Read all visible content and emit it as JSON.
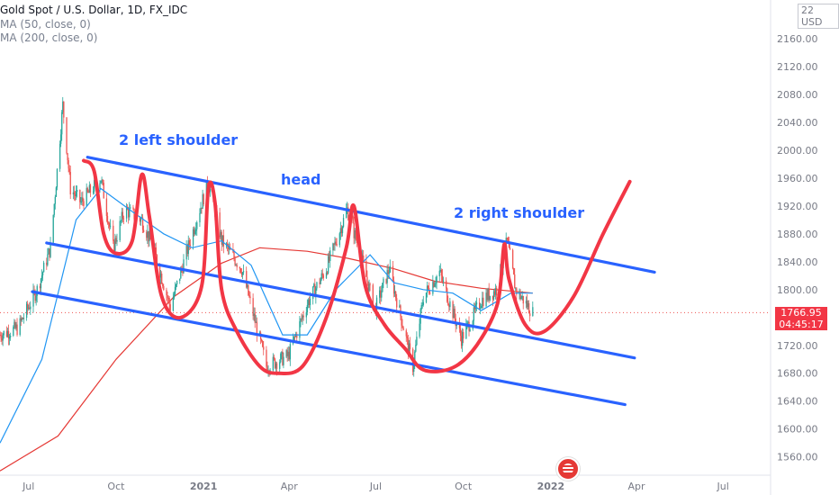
{
  "legend": {
    "symbol": "Gold Spot / U.S. Dollar, 1D, FX_IDC",
    "ma50": "MA (50, close, 0)",
    "ma200": "MA (200, close, 0)"
  },
  "currency_label": "USD",
  "currency_prefix": "22",
  "price_tag": {
    "price": "1766.95",
    "countdown": "04:45:17"
  },
  "annotations": {
    "left_shoulder": "2 left shoulder",
    "head": "head",
    "right_shoulder": "2 right shoulder"
  },
  "colors": {
    "channel": "#2962ff",
    "drawing": "#f23645",
    "ma50": "#2196f3",
    "ma200": "#e53935",
    "up": "#26a69a",
    "down": "#ef5350"
  },
  "chart_data": {
    "type": "candlestick",
    "title": "Gold Spot / U.S. Dollar, 1D, FX_IDC",
    "y_ticks": [
      "2160.00",
      "2120.00",
      "2080.00",
      "2040.00",
      "2000.00",
      "1960.00",
      "1920.00",
      "1880.00",
      "1840.00",
      "1800.00",
      "1720.00",
      "1680.00",
      "1640.00",
      "1600.00",
      "1560.00"
    ],
    "x_ticks": [
      "Jul",
      "Oct",
      "2021",
      "Apr",
      "Jul",
      "Oct",
      "2022",
      "Apr",
      "Jul"
    ],
    "ylim": [
      1530,
      2220
    ],
    "last_price": 1766.95,
    "close_path": [
      {
        "x": "2020-06-01",
        "y": 1735
      },
      {
        "x": "2020-06-20",
        "y": 1745
      },
      {
        "x": "2020-07-10",
        "y": 1800
      },
      {
        "x": "2020-07-24",
        "y": 1860
      },
      {
        "x": "2020-08-06",
        "y": 2065
      },
      {
        "x": "2020-08-14",
        "y": 1945
      },
      {
        "x": "2020-08-25",
        "y": 1925
      },
      {
        "x": "2020-09-15",
        "y": 1960
      },
      {
        "x": "2020-09-28",
        "y": 1860
      },
      {
        "x": "2020-10-10",
        "y": 1915
      },
      {
        "x": "2020-10-28",
        "y": 1900
      },
      {
        "x": "2020-11-09",
        "y": 1860
      },
      {
        "x": "2020-11-27",
        "y": 1775
      },
      {
        "x": "2020-12-20",
        "y": 1880
      },
      {
        "x": "2021-01-06",
        "y": 1955
      },
      {
        "x": "2021-01-20",
        "y": 1870
      },
      {
        "x": "2021-02-10",
        "y": 1830
      },
      {
        "x": "2021-03-08",
        "y": 1690
      },
      {
        "x": "2021-03-31",
        "y": 1705
      },
      {
        "x": "2021-04-20",
        "y": 1780
      },
      {
        "x": "2021-05-10",
        "y": 1830
      },
      {
        "x": "2021-06-01",
        "y": 1915
      },
      {
        "x": "2021-06-15",
        "y": 1850
      },
      {
        "x": "2021-06-30",
        "y": 1770
      },
      {
        "x": "2021-07-15",
        "y": 1830
      },
      {
        "x": "2021-08-09",
        "y": 1690
      },
      {
        "x": "2021-08-20",
        "y": 1790
      },
      {
        "x": "2021-09-06",
        "y": 1825
      },
      {
        "x": "2021-09-29",
        "y": 1730
      },
      {
        "x": "2021-10-20",
        "y": 1785
      },
      {
        "x": "2021-11-05",
        "y": 1800
      },
      {
        "x": "2021-11-16",
        "y": 1870
      },
      {
        "x": "2021-11-25",
        "y": 1800
      },
      {
        "x": "2021-12-13",
        "y": 1767
      }
    ],
    "series": [
      {
        "name": "MA (50, close, 0)",
        "values": [
          {
            "x": "2020-06-01",
            "y": 1580
          },
          {
            "x": "2020-07-15",
            "y": 1700
          },
          {
            "x": "2020-08-20",
            "y": 1900
          },
          {
            "x": "2020-09-15",
            "y": 1945
          },
          {
            "x": "2020-10-20",
            "y": 1910
          },
          {
            "x": "2020-11-20",
            "y": 1880
          },
          {
            "x": "2020-12-20",
            "y": 1860
          },
          {
            "x": "2021-01-20",
            "y": 1870
          },
          {
            "x": "2021-02-20",
            "y": 1835
          },
          {
            "x": "2021-03-25",
            "y": 1735
          },
          {
            "x": "2021-04-20",
            "y": 1735
          },
          {
            "x": "2021-05-20",
            "y": 1800
          },
          {
            "x": "2021-06-25",
            "y": 1850
          },
          {
            "x": "2021-07-20",
            "y": 1810
          },
          {
            "x": "2021-08-20",
            "y": 1800
          },
          {
            "x": "2021-09-20",
            "y": 1795
          },
          {
            "x": "2021-10-20",
            "y": 1770
          },
          {
            "x": "2021-11-20",
            "y": 1795
          },
          {
            "x": "2021-12-13",
            "y": 1795
          }
        ]
      },
      {
        "name": "MA (200, close, 0)",
        "values": [
          {
            "x": "2020-06-01",
            "y": 1540
          },
          {
            "x": "2020-08-01",
            "y": 1590
          },
          {
            "x": "2020-10-01",
            "y": 1700
          },
          {
            "x": "2020-12-01",
            "y": 1790
          },
          {
            "x": "2021-01-20",
            "y": 1838
          },
          {
            "x": "2021-03-01",
            "y": 1860
          },
          {
            "x": "2021-04-20",
            "y": 1855
          },
          {
            "x": "2021-06-01",
            "y": 1845
          },
          {
            "x": "2021-07-20",
            "y": 1830
          },
          {
            "x": "2021-09-01",
            "y": 1812
          },
          {
            "x": "2021-10-20",
            "y": 1802
          },
          {
            "x": "2021-12-13",
            "y": 1795
          }
        ]
      }
    ],
    "trendlines": [
      {
        "start": {
          "x": "2020-09-01",
          "y": 1990
        },
        "end": {
          "x": "2022-04-20",
          "y": 1825
        }
      },
      {
        "start": {
          "x": "2020-07-20",
          "y": 1867
        },
        "end": {
          "x": "2022-03-30",
          "y": 1702
        }
      },
      {
        "start": {
          "x": "2020-07-05",
          "y": 1797
        },
        "end": {
          "x": "2022-03-20",
          "y": 1635
        }
      }
    ],
    "drawing": [
      {
        "x": "2020-08-28",
        "y": 1985
      },
      {
        "x": "2020-09-08",
        "y": 1970
      },
      {
        "x": "2020-09-18",
        "y": 1880
      },
      {
        "x": "2020-10-01",
        "y": 1852
      },
      {
        "x": "2020-10-18",
        "y": 1870
      },
      {
        "x": "2020-10-28",
        "y": 1965
      },
      {
        "x": "2020-11-05",
        "y": 1905
      },
      {
        "x": "2020-11-18",
        "y": 1790
      },
      {
        "x": "2020-12-08",
        "y": 1760
      },
      {
        "x": "2020-12-30",
        "y": 1805
      },
      {
        "x": "2021-01-06",
        "y": 1945
      },
      {
        "x": "2021-01-13",
        "y": 1925
      },
      {
        "x": "2021-01-20",
        "y": 1800
      },
      {
        "x": "2021-02-05",
        "y": 1740
      },
      {
        "x": "2021-03-01",
        "y": 1690
      },
      {
        "x": "2021-03-20",
        "y": 1680
      },
      {
        "x": "2021-04-15",
        "y": 1690
      },
      {
        "x": "2021-05-10",
        "y": 1760
      },
      {
        "x": "2021-05-31",
        "y": 1860
      },
      {
        "x": "2021-06-08",
        "y": 1920
      },
      {
        "x": "2021-06-20",
        "y": 1805
      },
      {
        "x": "2021-07-10",
        "y": 1750
      },
      {
        "x": "2021-08-01",
        "y": 1715
      },
      {
        "x": "2021-08-20",
        "y": 1685
      },
      {
        "x": "2021-09-20",
        "y": 1688
      },
      {
        "x": "2021-10-15",
        "y": 1720
      },
      {
        "x": "2021-11-06",
        "y": 1780
      },
      {
        "x": "2021-11-13",
        "y": 1865
      },
      {
        "x": "2021-11-18",
        "y": 1815
      },
      {
        "x": "2021-12-05",
        "y": 1750
      },
      {
        "x": "2021-12-25",
        "y": 1740
      },
      {
        "x": "2022-01-25",
        "y": 1790
      },
      {
        "x": "2022-02-25",
        "y": 1880
      },
      {
        "x": "2022-03-25",
        "y": 1955
      }
    ]
  }
}
